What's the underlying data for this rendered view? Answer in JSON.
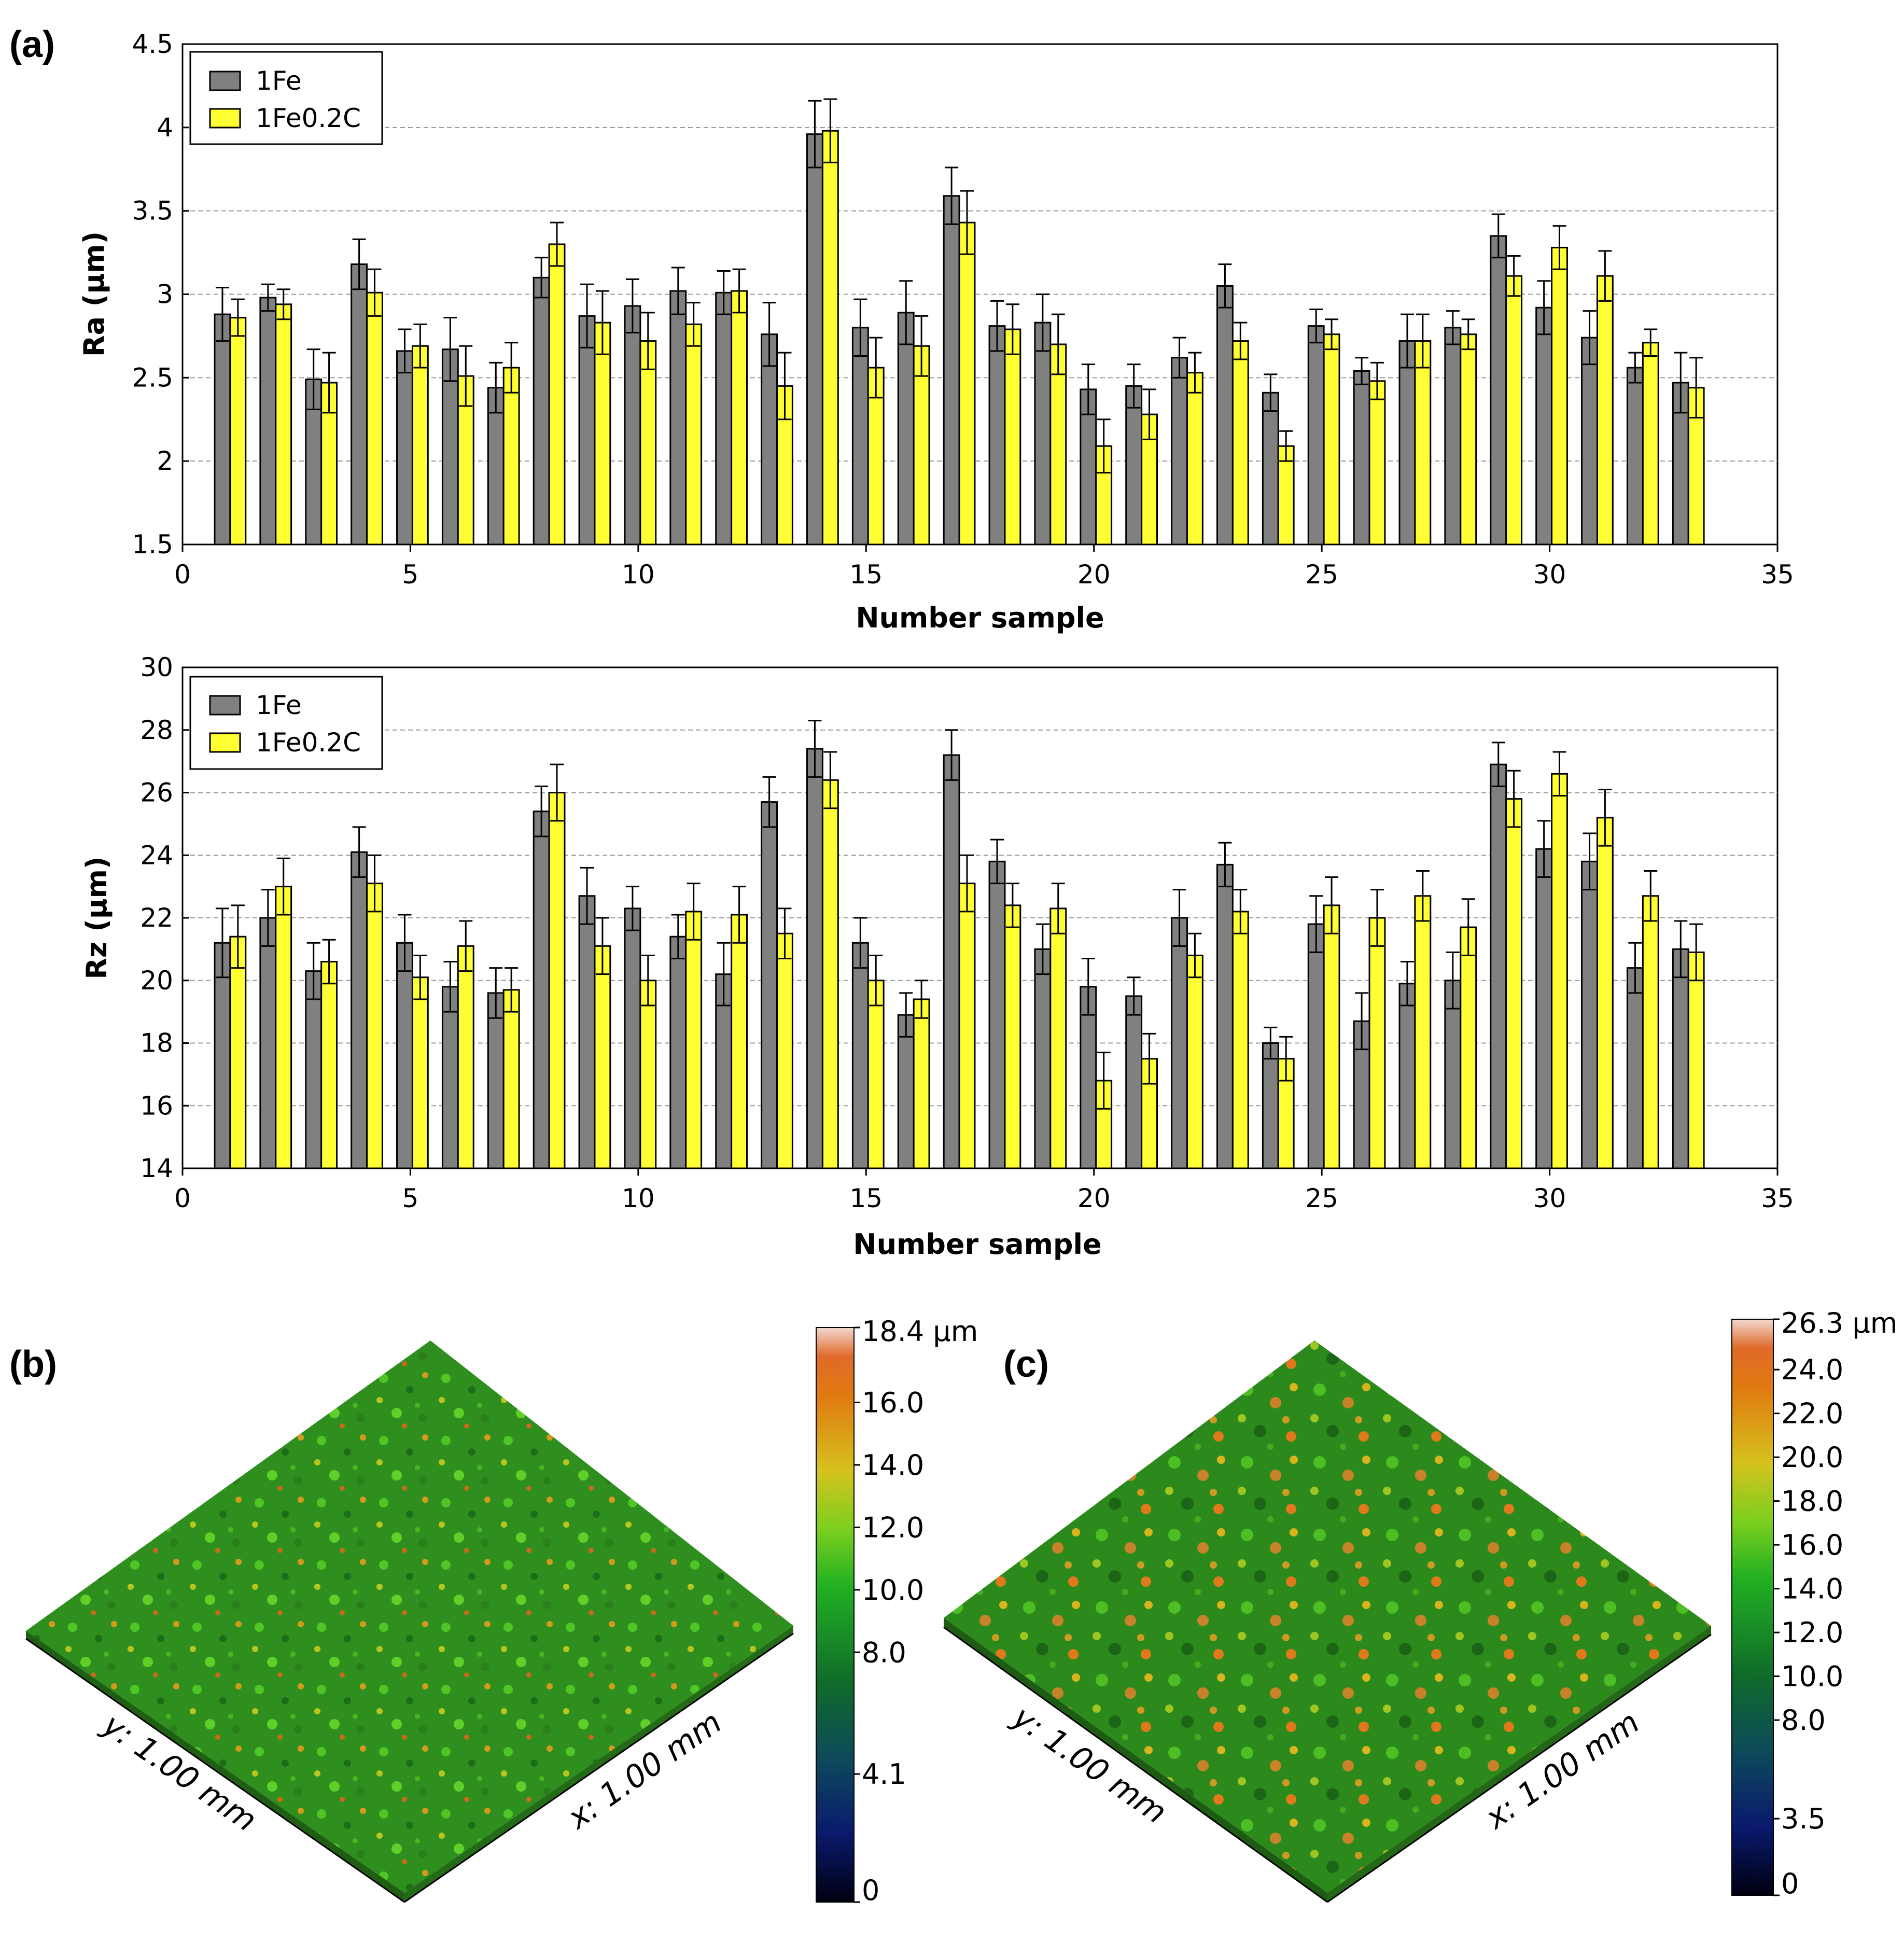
{
  "panel_labels": {
    "a": "(a)",
    "b": "(b)",
    "c": "(c)"
  },
  "colors": {
    "fe": "#808080",
    "fec": "#ffff33",
    "grid": "#9a9a9a"
  },
  "chart_data": [
    {
      "id": "ra",
      "type": "bar",
      "xlabel": "Number sample",
      "ylabel": "Ra (µm)",
      "xlim": [
        0,
        35
      ],
      "ylim": [
        1.5,
        4.5
      ],
      "xticks": [
        0,
        5,
        10,
        15,
        20,
        25,
        30,
        35
      ],
      "yticks": [
        1.5,
        2,
        2.5,
        3,
        3.5,
        4,
        4.5
      ],
      "ytick_labels": [
        "1.5",
        "2",
        "2.5",
        "3",
        "3.5",
        "4",
        "4.5"
      ],
      "legend": {
        "position": "top-left",
        "entries": [
          "1Fe",
          "1Fe0.2C"
        ]
      },
      "grid": "horizontal-dashed",
      "x": [
        1,
        2,
        3,
        4,
        5,
        6,
        7,
        8,
        9,
        10,
        11,
        12,
        13,
        14,
        15,
        16,
        17,
        18,
        19,
        20,
        21,
        22,
        23,
        24,
        25,
        26,
        27,
        28,
        29,
        30,
        31,
        32,
        33
      ],
      "series": [
        {
          "name": "1Fe",
          "values": [
            2.88,
            2.98,
            2.49,
            3.18,
            2.66,
            2.67,
            2.44,
            3.1,
            2.87,
            2.93,
            3.02,
            3.01,
            2.76,
            3.96,
            2.8,
            2.89,
            3.59,
            2.81,
            2.83,
            2.43,
            2.45,
            2.62,
            3.05,
            2.41,
            2.81,
            2.54,
            2.72,
            2.8,
            3.35,
            2.92,
            2.74,
            2.56,
            2.47
          ],
          "errors": [
            0.16,
            0.08,
            0.18,
            0.15,
            0.13,
            0.19,
            0.15,
            0.12,
            0.19,
            0.16,
            0.14,
            0.13,
            0.19,
            0.2,
            0.17,
            0.19,
            0.17,
            0.15,
            0.17,
            0.15,
            0.13,
            0.12,
            0.13,
            0.11,
            0.1,
            0.08,
            0.16,
            0.1,
            0.13,
            0.16,
            0.16,
            0.09,
            0.18
          ]
        },
        {
          "name": "1Fe0.2C",
          "values": [
            2.86,
            2.94,
            2.47,
            3.01,
            2.69,
            2.51,
            2.56,
            3.3,
            2.83,
            2.72,
            2.82,
            3.02,
            2.45,
            3.98,
            2.56,
            2.69,
            3.43,
            2.79,
            2.7,
            2.09,
            2.28,
            2.53,
            2.72,
            2.09,
            2.76,
            2.48,
            2.72,
            2.76,
            3.11,
            3.28,
            3.11,
            2.71,
            2.44
          ],
          "errors": [
            0.11,
            0.09,
            0.18,
            0.14,
            0.13,
            0.18,
            0.15,
            0.13,
            0.19,
            0.17,
            0.13,
            0.13,
            0.2,
            0.19,
            0.18,
            0.18,
            0.19,
            0.15,
            0.18,
            0.16,
            0.15,
            0.12,
            0.11,
            0.09,
            0.09,
            0.11,
            0.16,
            0.09,
            0.12,
            0.13,
            0.15,
            0.08,
            0.18
          ]
        }
      ]
    },
    {
      "id": "rz",
      "type": "bar",
      "xlabel": "Number sample",
      "ylabel": "Rz (µm)",
      "xlim": [
        0,
        35
      ],
      "ylim": [
        14,
        30
      ],
      "xticks": [
        0,
        5,
        10,
        15,
        20,
        25,
        30,
        35
      ],
      "yticks": [
        14,
        16,
        18,
        20,
        22,
        24,
        26,
        28,
        30
      ],
      "ytick_labels": [
        "14",
        "16",
        "18",
        "20",
        "22",
        "24",
        "26",
        "28",
        "30"
      ],
      "legend": {
        "position": "top-left",
        "entries": [
          "1Fe",
          "1Fe0.2C"
        ]
      },
      "grid": "horizontal-dashed",
      "x": [
        1,
        2,
        3,
        4,
        5,
        6,
        7,
        8,
        9,
        10,
        11,
        12,
        13,
        14,
        15,
        16,
        17,
        18,
        19,
        20,
        21,
        22,
        23,
        24,
        25,
        26,
        27,
        28,
        29,
        30,
        31,
        32,
        33
      ],
      "series": [
        {
          "name": "1Fe",
          "values": [
            21.2,
            22.0,
            20.3,
            24.1,
            21.2,
            19.8,
            19.6,
            25.4,
            22.7,
            22.3,
            21.4,
            20.2,
            25.7,
            27.4,
            21.2,
            18.9,
            27.2,
            23.8,
            21.0,
            19.8,
            19.5,
            22.0,
            23.7,
            18.0,
            21.8,
            18.7,
            19.9,
            20.0,
            26.9,
            24.2,
            23.8,
            20.4,
            21.0
          ],
          "errors": [
            1.1,
            0.9,
            0.9,
            0.8,
            0.9,
            0.8,
            0.8,
            0.8,
            0.9,
            0.7,
            0.7,
            1.0,
            0.8,
            0.9,
            0.8,
            0.7,
            0.8,
            0.7,
            0.8,
            0.9,
            0.6,
            0.9,
            0.7,
            0.5,
            0.9,
            0.9,
            0.7,
            0.9,
            0.7,
            0.9,
            0.9,
            0.8,
            0.9
          ]
        },
        {
          "name": "1Fe0.2C",
          "values": [
            21.4,
            23.0,
            20.6,
            23.1,
            20.1,
            21.1,
            19.7,
            26.0,
            21.1,
            20.0,
            22.2,
            22.1,
            21.5,
            26.4,
            20.0,
            19.4,
            23.1,
            22.4,
            22.3,
            16.8,
            17.5,
            20.8,
            22.2,
            17.5,
            22.4,
            22.0,
            22.7,
            21.7,
            25.8,
            26.6,
            25.2,
            22.7,
            20.9
          ],
          "errors": [
            1.0,
            0.9,
            0.7,
            0.9,
            0.7,
            0.8,
            0.7,
            0.9,
            0.9,
            0.8,
            0.9,
            0.9,
            0.8,
            0.9,
            0.8,
            0.6,
            0.9,
            0.7,
            0.8,
            0.9,
            0.8,
            0.7,
            0.7,
            0.7,
            0.9,
            0.9,
            0.8,
            0.9,
            0.9,
            0.7,
            0.9,
            0.8,
            0.9
          ]
        }
      ]
    }
  ],
  "surfaces": [
    {
      "id": "b",
      "x_label": "x: 1.00 mm",
      "y_label": "y: 1.00 mm",
      "colorbar_ticks": [
        "18.4 µm",
        "16.0",
        "14.0",
        "12.0",
        "10.0",
        "8.0",
        "4.1",
        "0"
      ],
      "colorbar_values": [
        18.4,
        16.0,
        14.0,
        12.0,
        10.0,
        8.0,
        4.1,
        0
      ],
      "zmax": 18.4
    },
    {
      "id": "c",
      "x_label": "x: 1.00 mm",
      "y_label": "y: 1.00 mm",
      "colorbar_ticks": [
        "26.3 µm",
        "24.0",
        "22.0",
        "20.0",
        "18.0",
        "16.0",
        "14.0",
        "12.0",
        "10.0",
        "8.0",
        "3.5",
        "0"
      ],
      "colorbar_values": [
        26.3,
        24.0,
        22.0,
        20.0,
        18.0,
        16.0,
        14.0,
        12.0,
        10.0,
        8.0,
        3.5,
        0
      ],
      "zmax": 26.3
    }
  ]
}
